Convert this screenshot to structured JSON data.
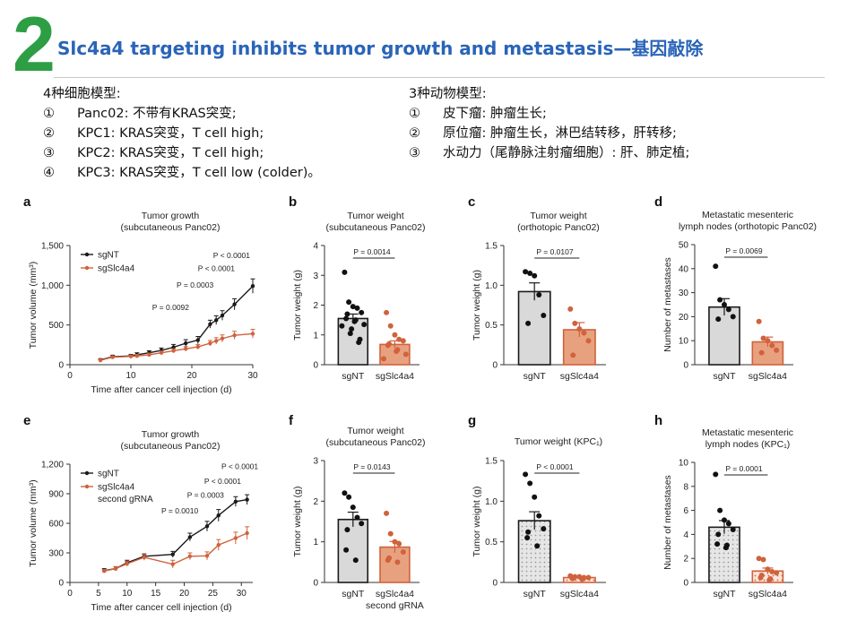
{
  "slide": {
    "number": "2",
    "title": "Slc4a4 targeting inhibits tumor growth and metastasis—基因敲除",
    "cell_models": {
      "heading": "4种细胞模型:",
      "items": [
        {
          "num": "①",
          "text": "Panc02:  不带有KRAS突变;"
        },
        {
          "num": "②",
          "text": "KPC1:  KRAS突变，T cell high;"
        },
        {
          "num": "③",
          "text": "KPC2:  KRAS突变，T cell high;"
        },
        {
          "num": "④",
          "text": "KPC3:  KRAS突变，T cell low (colder)。"
        }
      ]
    },
    "animal_models": {
      "heading": "3种动物模型:",
      "items": [
        {
          "num": "①",
          "text": "皮下瘤:  肿瘤生长;"
        },
        {
          "num": "②",
          "text": "原位瘤:  肿瘤生长，淋巴结转移，肝转移;"
        },
        {
          "num": "③",
          "text": "水动力（尾静脉注射瘤细胞）:  肝、肺定植;"
        }
      ]
    }
  },
  "colors": {
    "sgNT": "#1a1a1a",
    "sgSlc4a4": "#d0623c",
    "bar_nt": "#d9d9d9",
    "bar_slc": "#e8a17f",
    "accent_green": "#2e9e45",
    "title_blue": "#2a64b8"
  },
  "chart_data": [
    {
      "panel": "a",
      "type": "line",
      "title": "Tumor growth",
      "subtitle": "(subcutaneous Panc02)",
      "xlabel": "Time after cancer cell injection (d)",
      "ylabel": "Tumor volume (mm³)",
      "xlim": [
        0,
        30
      ],
      "ylim": [
        0,
        1500
      ],
      "xticks": [
        0,
        10,
        20,
        30
      ],
      "yticks": [
        0,
        500,
        1000,
        1500
      ],
      "ytick_labels": [
        "0",
        "500",
        "1,000",
        "1,500"
      ],
      "legend": "top-left",
      "series": [
        {
          "name": "sgNT",
          "x": [
            5,
            7,
            10,
            11,
            13,
            15,
            17,
            19,
            21,
            23,
            24,
            25,
            27,
            30
          ],
          "y": [
            60,
            100,
            110,
            125,
            150,
            180,
            220,
            270,
            310,
            510,
            560,
            620,
            760,
            990
          ],
          "err": [
            15,
            20,
            20,
            25,
            25,
            30,
            35,
            45,
            45,
            50,
            55,
            60,
            70,
            90
          ]
        },
        {
          "name": "sgSlc4a4",
          "x": [
            5,
            7,
            10,
            11,
            13,
            15,
            17,
            19,
            21,
            23,
            24,
            25,
            27,
            30
          ],
          "y": [
            55,
            95,
            105,
            110,
            125,
            150,
            175,
            200,
            225,
            270,
            300,
            330,
            370,
            390
          ],
          "err": [
            12,
            15,
            15,
            18,
            20,
            22,
            25,
            28,
            30,
            35,
            40,
            45,
            50,
            55
          ]
        }
      ],
      "annotations": [
        {
          "text": "P = 0.0092",
          "x": 13.5,
          "y": 690
        },
        {
          "text": "P = 0.0003",
          "x": 17.5,
          "y": 970
        },
        {
          "text": "P < 0.0001",
          "x": 21,
          "y": 1180
        },
        {
          "text": "P < 0.0001",
          "x": 23.5,
          "y": 1340
        }
      ]
    },
    {
      "panel": "b",
      "type": "bar",
      "title": "Tumor weight",
      "subtitle": "(subcutaneous Panc02)",
      "ylabel": "Tumor weight (g)",
      "ylim": [
        0,
        4
      ],
      "yticks": [
        0,
        1,
        2,
        3,
        4
      ],
      "categories": [
        "sgNT",
        "sgSlc4a4"
      ],
      "values": [
        1.55,
        0.68
      ],
      "err": [
        0.15,
        0.12
      ],
      "points": [
        [
          3.1,
          2.1,
          1.95,
          1.9,
          1.75,
          1.7,
          1.55,
          1.5,
          1.45,
          1.35,
          1.3,
          1.2,
          1.05,
          0.85,
          0.75
        ],
        [
          1.75,
          1.3,
          1.0,
          0.85,
          0.8,
          0.7,
          0.65,
          0.5,
          0.45,
          0.35,
          0.2
        ]
      ],
      "pvalue": "P = 0.0014"
    },
    {
      "panel": "c",
      "type": "bar",
      "title": "Tumor weight",
      "subtitle": "(orthotopic Panc02)",
      "ylabel": "Tumor weight (g)",
      "ylim": [
        0,
        1.5
      ],
      "yticks": [
        0,
        0.5,
        1.0,
        1.5
      ],
      "ytick_labels": [
        "0",
        "0.5",
        "1.0",
        "1.5"
      ],
      "categories": [
        "sgNT",
        "sgSlc4a4"
      ],
      "values": [
        0.92,
        0.44
      ],
      "err": [
        0.11,
        0.09
      ],
      "points": [
        [
          1.17,
          1.15,
          1.12,
          0.88,
          0.62,
          0.52
        ],
        [
          0.7,
          0.52,
          0.45,
          0.4,
          0.3,
          0.12
        ]
      ],
      "pvalue": "P = 0.0107"
    },
    {
      "panel": "d",
      "type": "bar",
      "title": "Metastatic mesenteric",
      "subtitle": "lymph nodes (orthotopic Panc02)",
      "ylabel": "Number of metastases",
      "ylim": [
        0,
        50
      ],
      "yticks": [
        0,
        10,
        20,
        30,
        40,
        50
      ],
      "categories": [
        "sgNT",
        "sgSlc4a4"
      ],
      "values": [
        24,
        9.5
      ],
      "err": [
        3.5,
        2
      ],
      "points": [
        [
          41,
          27,
          25,
          23,
          20,
          19
        ],
        [
          18,
          11,
          10,
          8,
          6,
          5
        ]
      ],
      "pvalue": "P = 0.0069"
    },
    {
      "panel": "e",
      "type": "line",
      "title": "Tumor growth",
      "subtitle": "(subcutaneous Panc02)",
      "xlabel": "Time after cancer cell injection (d)",
      "ylabel": "Tumor volume (mm³)",
      "xlim": [
        0,
        32
      ],
      "ylim": [
        0,
        1200
      ],
      "xticks": [
        0,
        5,
        10,
        15,
        20,
        25,
        30
      ],
      "yticks": [
        0,
        300,
        600,
        900,
        1200
      ],
      "ytick_labels": [
        "0",
        "300",
        "600",
        "900",
        "1,200"
      ],
      "legend": "top-left",
      "series": [
        {
          "name": "sgNT",
          "x": [
            6,
            8,
            10,
            13,
            18,
            21,
            24,
            26,
            29,
            31
          ],
          "y": [
            120,
            140,
            200,
            265,
            285,
            460,
            570,
            680,
            820,
            840
          ],
          "err": [
            20,
            20,
            25,
            25,
            30,
            40,
            50,
            60,
            50,
            50
          ]
        },
        {
          "name": "sgSlc4a4",
          "name2": "second gRNA",
          "x": [
            6,
            8,
            10,
            13,
            18,
            21,
            24,
            26,
            29,
            31
          ],
          "y": [
            115,
            140,
            190,
            255,
            185,
            265,
            270,
            380,
            450,
            500
          ],
          "err": [
            15,
            20,
            25,
            30,
            40,
            35,
            40,
            55,
            60,
            65
          ]
        }
      ],
      "annotations": [
        {
          "text": "P = 0.0010",
          "x": 16,
          "y": 700
        },
        {
          "text": "P = 0.0003",
          "x": 20.5,
          "y": 860
        },
        {
          "text": "P < 0.0001",
          "x": 23.5,
          "y": 1000
        },
        {
          "text": "P < 0.0001",
          "x": 26.5,
          "y": 1150
        }
      ]
    },
    {
      "panel": "f",
      "type": "bar",
      "title": "Tumor weight",
      "subtitle": "(subcutaneous Panc02)",
      "ylabel": "Tumor weight (g)",
      "ylim": [
        0,
        3
      ],
      "yticks": [
        0,
        1,
        2,
        3
      ],
      "categories": [
        "sgNT",
        "sgSlc4a4\nsecond gRNA"
      ],
      "values": [
        1.55,
        0.87
      ],
      "err": [
        0.18,
        0.14
      ],
      "points": [
        [
          2.2,
          2.1,
          1.85,
          1.6,
          1.45,
          1.3,
          0.8,
          0.55
        ],
        [
          1.7,
          1.2,
          1.0,
          0.95,
          0.75,
          0.6,
          0.55,
          0.5
        ]
      ],
      "pvalue": "P = 0.0143"
    },
    {
      "panel": "g",
      "type": "bar",
      "title": "Tumor weight (KPC₁)",
      "ylabel": "Tumor weight (g)",
      "ylim": [
        0,
        1.5
      ],
      "yticks": [
        0,
        0.5,
        1.0,
        1.5
      ],
      "ytick_labels": [
        "0",
        "0.5",
        "1.0",
        "1.5"
      ],
      "categories": [
        "sgNT",
        "sgSlc4a4"
      ],
      "values": [
        0.76,
        0.06
      ],
      "err": [
        0.11,
        0.01
      ],
      "points": [
        [
          1.33,
          1.22,
          1.05,
          0.82,
          0.66,
          0.62,
          0.55,
          0.45
        ],
        [
          0.08,
          0.07,
          0.07,
          0.06,
          0.06,
          0.05,
          0.05,
          0.04
        ]
      ],
      "pvalue": "P < 0.0001"
    },
    {
      "panel": "h",
      "type": "bar",
      "title": "Metastatic mesenteric",
      "subtitle": "lymph nodes (KPC₁)",
      "ylabel": "Number of metastases",
      "ylim": [
        0,
        10
      ],
      "yticks": [
        0,
        2,
        4,
        6,
        8,
        10
      ],
      "categories": [
        "sgNT",
        "sgSlc4a4"
      ],
      "values": [
        4.6,
        0.95
      ],
      "err": [
        0.55,
        0.25
      ],
      "points": [
        [
          9,
          6,
          5.2,
          4.9,
          4.4,
          4.0,
          3.2,
          3.1,
          2.9
        ],
        [
          2.0,
          1.9,
          1.1,
          0.9,
          0.8,
          0.6,
          0.4,
          0.3,
          0.2
        ]
      ],
      "pvalue": "P = 0.0001"
    }
  ]
}
